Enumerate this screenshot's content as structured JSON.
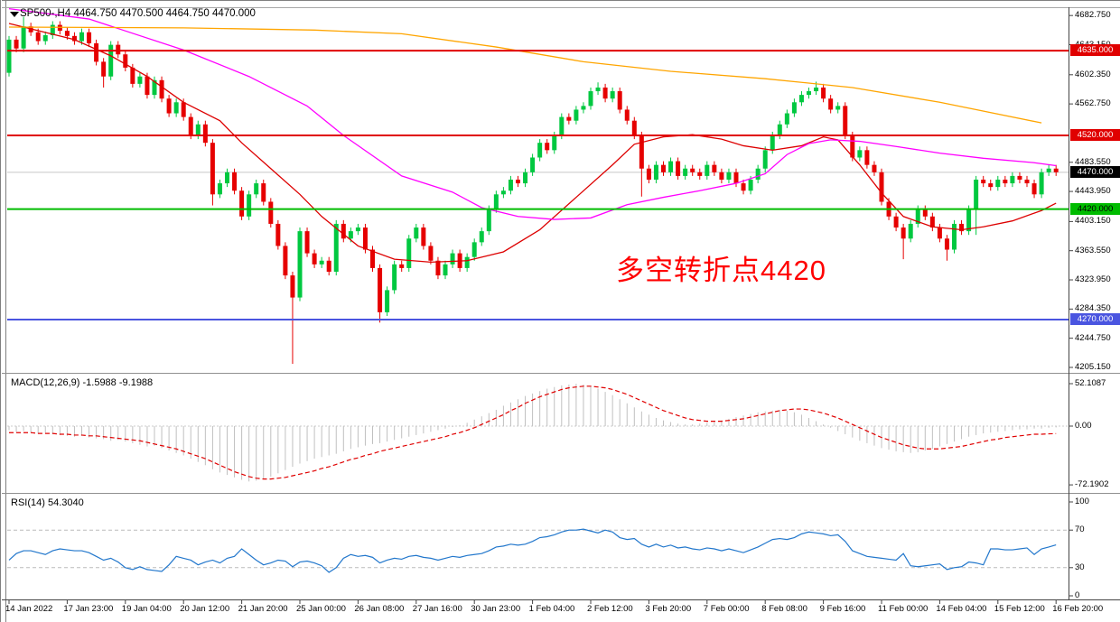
{
  "window": {
    "title": "SP500-,H4",
    "quote": "4464.750 4470.500 4464.750 4470.000"
  },
  "annotation": {
    "text": "多空转折点4420",
    "color": "#FF0000"
  },
  "panels": {
    "macd_header": {
      "name": "MACD(12,26,9)",
      "macd": "-1.5988",
      "signal": "-9.1988"
    },
    "rsi_header": {
      "name": "RSI(14)",
      "value": "54.3040"
    }
  },
  "price_axis": {
    "tick_labels": [
      {
        "text": "4682.750",
        "price": 4682.75
      },
      {
        "text": "4643.150",
        "price": 4643.15
      },
      {
        "text": "4602.350",
        "price": 4602.35
      },
      {
        "text": "4562.750",
        "price": 4562.75
      },
      {
        "text": "4483.550",
        "price": 4483.55
      },
      {
        "text": "4443.950",
        "price": 4443.95
      },
      {
        "text": "4403.150",
        "price": 4403.15
      },
      {
        "text": "4363.550",
        "price": 4363.55
      },
      {
        "text": "4323.950",
        "price": 4323.95
      },
      {
        "text": "4284.350",
        "price": 4284.35
      },
      {
        "text": "4244.750",
        "price": 4244.75
      },
      {
        "text": "4205.150",
        "price": 4205.15
      }
    ],
    "badges": [
      {
        "text": "4635.000",
        "price": 4635,
        "bg": "#E00000",
        "fg": "#FFFFFF"
      },
      {
        "text": "4520.000",
        "price": 4520,
        "bg": "#E00000",
        "fg": "#FFFFFF"
      },
      {
        "text": "4470.000",
        "price": 4470,
        "bg": "#000000",
        "fg": "#FFFFFF"
      },
      {
        "text": "4420.000",
        "price": 4420,
        "bg": "#00BC00",
        "fg": "#000000"
      },
      {
        "text": "4270.000",
        "price": 4270,
        "bg": "#4A55E0",
        "fg": "#FFFFFF"
      }
    ]
  },
  "time_axis": {
    "ticks": [
      {
        "label": "14 Jan 2022",
        "bar": 0
      },
      {
        "label": "17 Jan 23:00",
        "bar": 8
      },
      {
        "label": "19 Jan 04:00",
        "bar": 16
      },
      {
        "label": "20 Jan 12:00",
        "bar": 24
      },
      {
        "label": "21 Jan 20:00",
        "bar": 32
      },
      {
        "label": "25 Jan 00:00",
        "bar": 40
      },
      {
        "label": "26 Jan 08:00",
        "bar": 48
      },
      {
        "label": "27 Jan 16:00",
        "bar": 56
      },
      {
        "label": "30 Jan 23:00",
        "bar": 64
      },
      {
        "label": "1 Feb 04:00",
        "bar": 72
      },
      {
        "label": "2 Feb 12:00",
        "bar": 80
      },
      {
        "label": "3 Feb 20:00",
        "bar": 88
      },
      {
        "label": "7 Feb 00:00",
        "bar": 96
      },
      {
        "label": "8 Feb 08:00",
        "bar": 104
      },
      {
        "label": "9 Feb 16:00",
        "bar": 112
      },
      {
        "label": "11 Feb 00:00",
        "bar": 120
      },
      {
        "label": "14 Feb 04:00",
        "bar": 128
      },
      {
        "label": "15 Feb 12:00",
        "bar": 136
      },
      {
        "label": "16 Feb 20:00",
        "bar": 144
      }
    ]
  },
  "chart_data": [
    {
      "type": "candlestick",
      "symbol": "SP500-",
      "timeframe": "H4",
      "title": "SP500-,H4 4464.750 4470.500 4464.750 4470.000",
      "bars": 145,
      "ylim": [
        4199,
        4694
      ],
      "up_color": "#00C840",
      "down_color": "#E60000",
      "first_open": 4605,
      "default_wick": 5,
      "closes": [
        4650,
        4638,
        4668,
        4660,
        4648,
        4656,
        4670,
        4662,
        4655,
        4648,
        4660,
        4645,
        4620,
        4600,
        4643,
        4630,
        4612,
        4590,
        4600,
        4575,
        4595,
        4570,
        4550,
        4565,
        4545,
        4520,
        4535,
        4510,
        4440,
        4455,
        4470,
        4445,
        4410,
        4440,
        4455,
        4430,
        4400,
        4370,
        4330,
        4300,
        4390,
        4360,
        4345,
        4350,
        4335,
        4400,
        4380,
        4390,
        4395,
        4365,
        4340,
        4280,
        4310,
        4345,
        4340,
        4380,
        4395,
        4370,
        4350,
        4330,
        4345,
        4360,
        4340,
        4355,
        4375,
        4390,
        4420,
        4440,
        4445,
        4460,
        4455,
        4470,
        4490,
        4510,
        4500,
        4520,
        4545,
        4540,
        4555,
        4560,
        4580,
        4585,
        4570,
        4580,
        4555,
        4540,
        4520,
        4475,
        4460,
        4480,
        4470,
        4485,
        4465,
        4475,
        4470,
        4465,
        4480,
        4470,
        4460,
        4470,
        4455,
        4445,
        4460,
        4475,
        4500,
        4520,
        4535,
        4550,
        4565,
        4575,
        4580,
        4585,
        4570,
        4555,
        4560,
        4520,
        4490,
        4500,
        4480,
        4470,
        4430,
        4410,
        4395,
        4380,
        4400,
        4420,
        4410,
        4395,
        4380,
        4365,
        4400,
        4390,
        4420,
        4460,
        4455,
        4450,
        4460,
        4455,
        4465,
        4460,
        4455,
        4440,
        4470,
        4475,
        4470
      ],
      "wick_overrides": {
        "2": {
          "high": 4681
        },
        "13": {
          "low": 4585
        },
        "28": {
          "low": 4425
        },
        "39": {
          "low": 4210
        },
        "51": {
          "low": 4266
        },
        "81": {
          "high": 4592
        },
        "87": {
          "low": 4437
        },
        "111": {
          "high": 4593
        },
        "123": {
          "low": 4352
        },
        "129": {
          "low": 4350
        },
        "133": {
          "low": 4385
        }
      },
      "hlines": [
        {
          "price": 4635,
          "color": "#E00000",
          "width": 2,
          "role": "resistance"
        },
        {
          "price": 4520,
          "color": "#E00000",
          "width": 2,
          "role": "resistance"
        },
        {
          "price": 4470,
          "color": "#C8C8C8",
          "width": 1,
          "role": "current-price-line"
        },
        {
          "price": 4420,
          "color": "#00BC00",
          "width": 2,
          "role": "support"
        },
        {
          "price": 4270,
          "color": "#4A55E0",
          "width": 2,
          "role": "support"
        }
      ],
      "moving_averages": [
        {
          "name": "ma-fast-red",
          "color": "#DD0000",
          "points": [
            [
              0,
              4672
            ],
            [
              9,
              4650
            ],
            [
              14,
              4628
            ],
            [
              19,
              4600
            ],
            [
              24,
              4565
            ],
            [
              29,
              4540
            ],
            [
              32,
              4510
            ],
            [
              36,
              4475
            ],
            [
              40,
              4440
            ],
            [
              43,
              4410
            ],
            [
              48,
              4370
            ],
            [
              53,
              4352
            ],
            [
              58,
              4348
            ],
            [
              63,
              4350
            ],
            [
              68,
              4362
            ],
            [
              73,
              4392
            ],
            [
              78,
              4436
            ],
            [
              83,
              4480
            ],
            [
              86,
              4508
            ],
            [
              90,
              4518
            ],
            [
              94,
              4521
            ],
            [
              98,
              4515
            ],
            [
              101,
              4506
            ],
            [
              105,
              4500
            ],
            [
              109,
              4506
            ],
            [
              112,
              4518
            ],
            [
              114,
              4514
            ],
            [
              117,
              4480
            ],
            [
              120,
              4442
            ],
            [
              123,
              4410
            ],
            [
              127,
              4396
            ],
            [
              131,
              4392
            ],
            [
              134,
              4396
            ],
            [
              138,
              4404
            ],
            [
              142,
              4418
            ],
            [
              144,
              4428
            ]
          ]
        },
        {
          "name": "ma-mid-magenta",
          "color": "#FF00FF",
          "points": [
            [
              0,
              4692
            ],
            [
              11,
              4678
            ],
            [
              24,
              4636
            ],
            [
              33,
              4600
            ],
            [
              41,
              4560
            ],
            [
              46,
              4520
            ],
            [
              54,
              4465
            ],
            [
              61,
              4443
            ],
            [
              65,
              4422
            ],
            [
              70,
              4410
            ],
            [
              75,
              4406
            ],
            [
              80,
              4408
            ],
            [
              85,
              4426
            ],
            [
              90,
              4436
            ],
            [
              95,
              4445
            ],
            [
              100,
              4455
            ],
            [
              104,
              4468
            ],
            [
              107,
              4494
            ],
            [
              110,
              4509
            ],
            [
              113,
              4514
            ],
            [
              117,
              4512
            ],
            [
              122,
              4505
            ],
            [
              128,
              4496
            ],
            [
              134,
              4489
            ],
            [
              141,
              4483
            ],
            [
              144,
              4479
            ]
          ]
        },
        {
          "name": "ma-slow-orange",
          "color": "#FFA500",
          "points": [
            [
              0,
              4667
            ],
            [
              24,
              4666
            ],
            [
              42,
              4663
            ],
            [
              54,
              4658
            ],
            [
              67,
              4640
            ],
            [
              79,
              4620
            ],
            [
              91,
              4607
            ],
            [
              104,
              4597
            ],
            [
              116,
              4585
            ],
            [
              128,
              4565
            ],
            [
              142,
              4537
            ]
          ]
        }
      ]
    },
    {
      "type": "macd",
      "params": [
        12,
        26,
        9
      ],
      "last_macd": "-1.5988",
      "last_signal": "-9.1988",
      "ylim": [
        -81,
        63
      ],
      "histogram_color": "#C0C0C0",
      "signal_color": "#E00000",
      "axis_ticks": [
        {
          "text": "52.1087",
          "value": 52.1087
        },
        {
          "text": "0.00",
          "value": 0
        },
        {
          "text": "-72.1902",
          "value": -72.1902
        }
      ],
      "histogram": [
        -5,
        -7,
        -6,
        -8,
        -9,
        -8,
        -10,
        -11,
        -12,
        -13,
        -12,
        -14,
        -15,
        -16,
        -18,
        -17,
        -19,
        -21,
        -23,
        -25,
        -24,
        -27,
        -30,
        -33,
        -36,
        -40,
        -44,
        -48,
        -53,
        -57,
        -60,
        -63,
        -66,
        -68,
        -67,
        -65,
        -62,
        -58,
        -54,
        -50,
        -46,
        -43,
        -40,
        -38,
        -36,
        -34,
        -31,
        -28,
        -26,
        -24,
        -22,
        -21,
        -19,
        -17,
        -15,
        -13,
        -11,
        -9,
        -7,
        -5,
        -3,
        -1,
        1,
        4,
        8,
        12,
        16,
        20,
        25,
        29,
        33,
        37,
        40,
        43,
        46,
        48,
        50,
        51,
        52,
        51,
        49,
        46,
        42,
        38,
        33,
        28,
        23,
        18,
        14,
        10,
        7,
        5,
        3,
        2,
        2,
        3,
        4,
        5,
        7,
        9,
        11,
        13,
        15,
        17,
        18,
        19,
        20,
        19,
        17,
        14,
        10,
        6,
        2,
        -2,
        -6,
        -10,
        -14,
        -18,
        -21,
        -24,
        -27,
        -29,
        -31,
        -32,
        -33,
        -32,
        -30,
        -28,
        -25,
        -22,
        -19,
        -16,
        -13,
        -11,
        -9,
        -8,
        -7,
        -6,
        -5,
        -4,
        -4,
        -3,
        -3,
        -2,
        -1.6
      ],
      "signal": [
        -8,
        -8,
        -8,
        -8,
        -9,
        -9,
        -9,
        -10,
        -10,
        -11,
        -11,
        -12,
        -12,
        -13,
        -14,
        -15,
        -16,
        -17,
        -18,
        -20,
        -22,
        -24,
        -26,
        -28,
        -31,
        -34,
        -37,
        -40,
        -44,
        -48,
        -52,
        -56,
        -59,
        -62,
        -64,
        -65,
        -65,
        -64,
        -63,
        -61,
        -59,
        -57,
        -55,
        -52,
        -50,
        -47,
        -44,
        -41,
        -39,
        -36,
        -34,
        -31,
        -29,
        -27,
        -25,
        -23,
        -21,
        -19,
        -17,
        -15,
        -13,
        -10,
        -8,
        -5,
        -2,
        2,
        6,
        10,
        14,
        19,
        23,
        28,
        32,
        36,
        39,
        42,
        45,
        47,
        48,
        49,
        49,
        48,
        47,
        45,
        42,
        39,
        35,
        31,
        27,
        23,
        19,
        16,
        13,
        10,
        8,
        7,
        6,
        6,
        6,
        7,
        8,
        9,
        11,
        13,
        15,
        17,
        19,
        20,
        21,
        21,
        20,
        18,
        16,
        13,
        10,
        6,
        2,
        -2,
        -6,
        -10,
        -14,
        -17,
        -20,
        -23,
        -25,
        -27,
        -28,
        -28,
        -28,
        -27,
        -26,
        -25,
        -23,
        -21,
        -19,
        -17,
        -16,
        -14,
        -13,
        -12,
        -11,
        -10,
        -10,
        -9.5,
        -9.2
      ]
    },
    {
      "type": "rsi",
      "period": 14,
      "last": "54.3040",
      "ylim": [
        0,
        100
      ],
      "levels": [
        30,
        70
      ],
      "line_color": "#2277CC",
      "axis_ticks": [
        {
          "text": "100",
          "value": 100
        },
        {
          "text": "70",
          "value": 70
        },
        {
          "text": "30",
          "value": 30
        },
        {
          "text": "0",
          "value": 0
        }
      ],
      "values": [
        38,
        45,
        48,
        48,
        46,
        44,
        48,
        50,
        49,
        48,
        48,
        46,
        42,
        38,
        40,
        36,
        30,
        28,
        31,
        28,
        27,
        26,
        33,
        42,
        40,
        38,
        33,
        36,
        38,
        35,
        40,
        42,
        50,
        44,
        38,
        33,
        35,
        38,
        37,
        31,
        36,
        37,
        35,
        32,
        25,
        30,
        40,
        44,
        42,
        43,
        41,
        35,
        38,
        40,
        39,
        42,
        43,
        41,
        40,
        38,
        40,
        42,
        41,
        43,
        44,
        45,
        48,
        52,
        53,
        55,
        54,
        55,
        58,
        62,
        63,
        65,
        68,
        70,
        70,
        71,
        69,
        67,
        70,
        68,
        62,
        60,
        61,
        55,
        52,
        55,
        52,
        54,
        51,
        52,
        50,
        49,
        51,
        50,
        48,
        50,
        48,
        46,
        49,
        52,
        56,
        60,
        61,
        60,
        62,
        66,
        68,
        67,
        66,
        64,
        65,
        58,
        48,
        45,
        42,
        41,
        40,
        39,
        38,
        45,
        32,
        31,
        32,
        33,
        34,
        28,
        30,
        31,
        36,
        35,
        33,
        50,
        50,
        49,
        49,
        50,
        51,
        44,
        50,
        52,
        54.3
      ]
    }
  ]
}
